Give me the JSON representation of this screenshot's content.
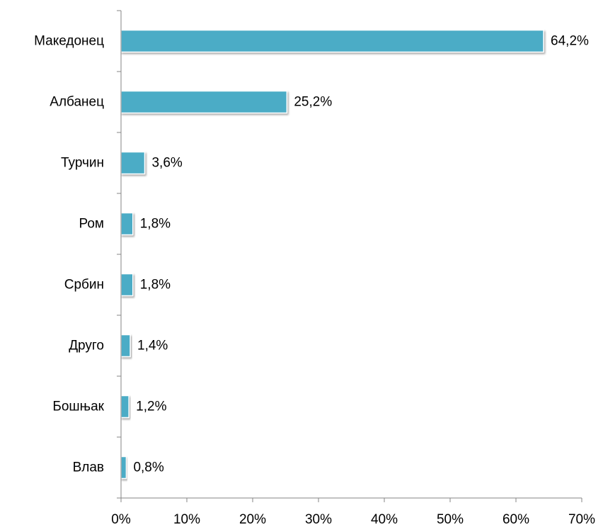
{
  "chart_data": {
    "type": "bar",
    "orientation": "horizontal",
    "categories": [
      "Македонец",
      "Албанец",
      "Турчин",
      "Ром",
      "Србин",
      "Друго",
      "Бошњак",
      "Влав"
    ],
    "values": [
      64.2,
      25.2,
      3.6,
      1.8,
      1.8,
      1.4,
      1.2,
      0.8
    ],
    "data_labels": [
      "64,2%",
      "25,2%",
      "3,6%",
      "1,8%",
      "1,8%",
      "1,4%",
      "1,2%",
      "0,8%"
    ],
    "xlim": [
      0,
      70
    ],
    "x_ticks": [
      0,
      10,
      20,
      30,
      40,
      50,
      60,
      70
    ],
    "x_tick_labels": [
      "0%",
      "10%",
      "20%",
      "30%",
      "40%",
      "50%",
      "60%",
      "70%"
    ],
    "title": "",
    "xlabel": "",
    "ylabel": "",
    "grid": false,
    "legend": "none",
    "bar_color": "#4BACC6",
    "bar_edge_color": "#ffffff",
    "axis_color": "#868686"
  }
}
